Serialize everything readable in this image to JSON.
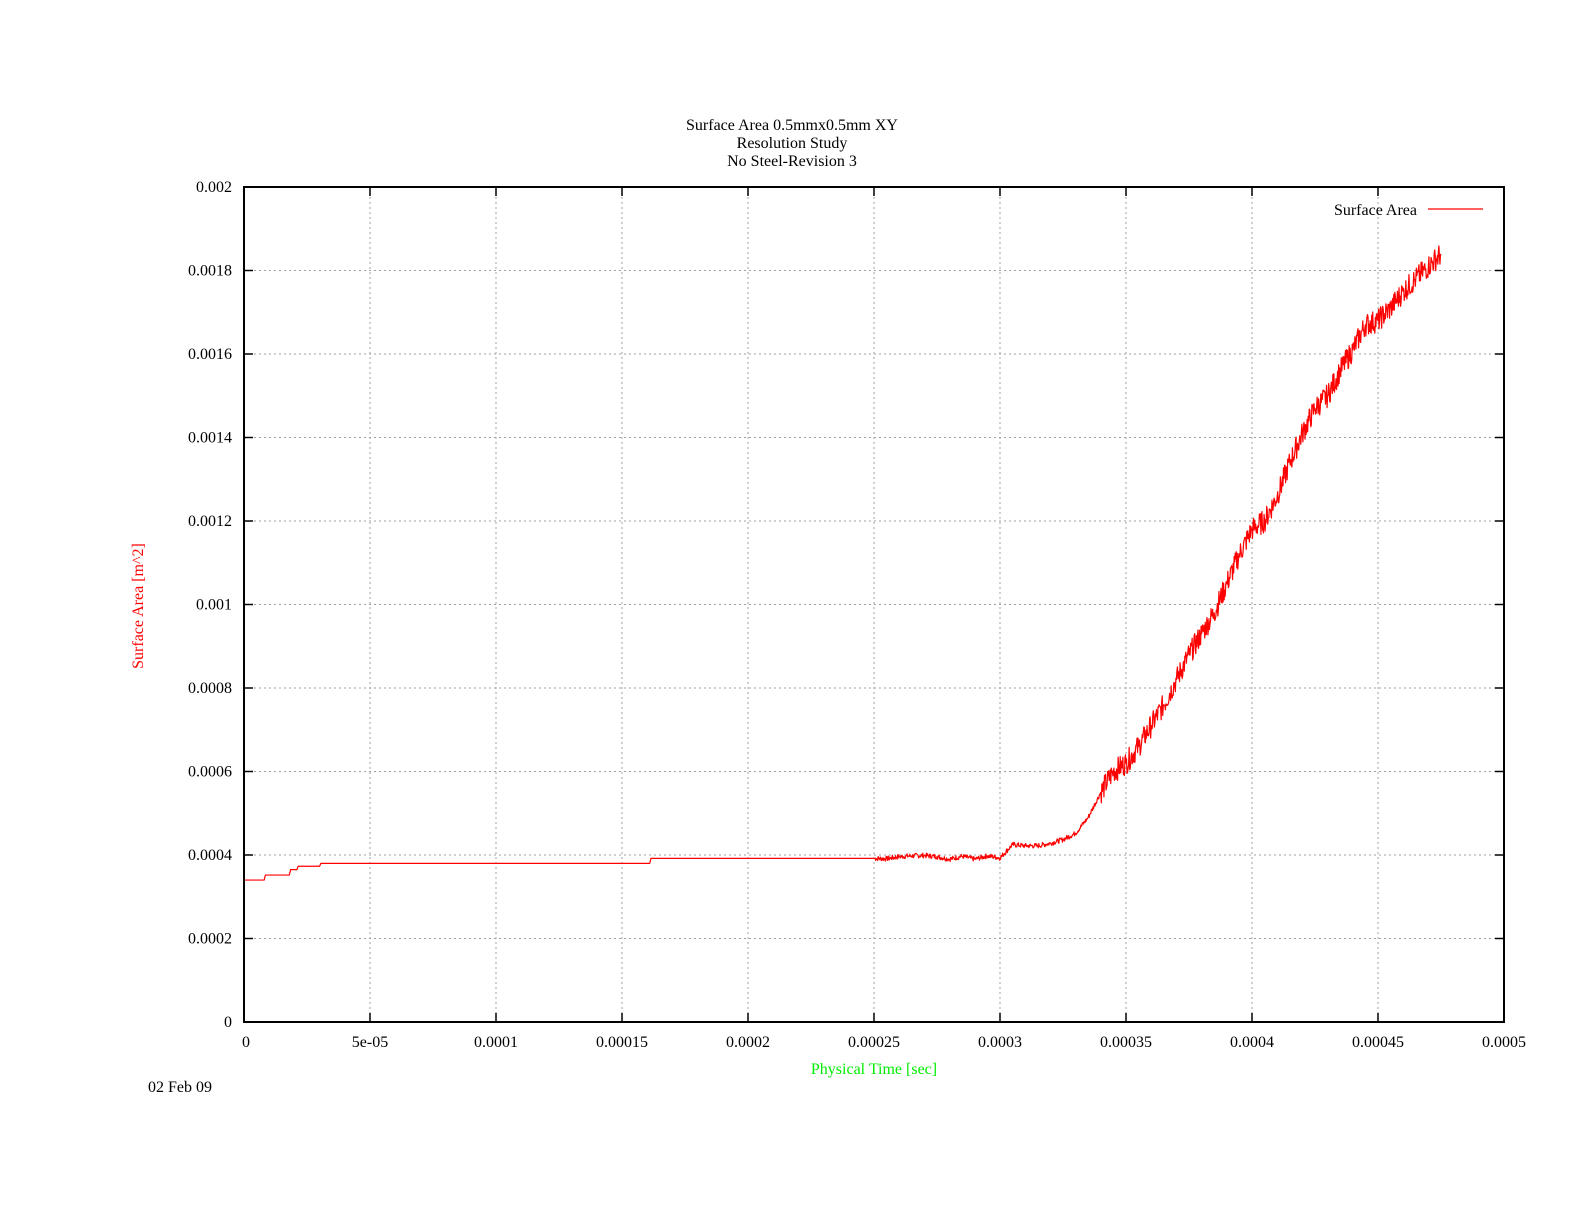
{
  "chart_data": {
    "type": "line",
    "title": [
      "Surface Area 0.5mmx0.5mm XY",
      "Resolution Study",
      "No Steel-Revision 3"
    ],
    "xlabel": "Physical Time [sec]",
    "ylabel": "Surface Area [m^2]",
    "xlim": [
      0,
      0.0005
    ],
    "ylim": [
      0,
      0.002
    ],
    "xticks": [
      0,
      5e-05,
      0.0001,
      0.00015,
      0.0002,
      0.00025,
      0.0003,
      0.00035,
      0.0004,
      0.00045,
      0.0005
    ],
    "xtick_labels": [
      "0",
      "5e-05",
      "0.0001",
      "0.00015",
      "0.0002",
      "0.00025",
      "0.0003",
      "0.00035",
      "0.0004",
      "0.00045",
      "0.0005"
    ],
    "yticks": [
      0,
      0.0002,
      0.0004,
      0.0006,
      0.0008,
      0.001,
      0.0012,
      0.0014,
      0.0016,
      0.0018,
      0.002
    ],
    "ytick_labels": [
      "0",
      "0.0002",
      "0.0004",
      "0.0006",
      "0.0008",
      "0.001",
      "0.0012",
      "0.0014",
      "0.0016",
      "0.0018",
      "0.002"
    ],
    "grid": true,
    "legend": "top-right",
    "xlabel_color": "#00ee00",
    "ylabel_color": "#ff0000",
    "series": [
      {
        "name": "Surface Area",
        "color": "#ff0000",
        "x": [
          0,
          8e-06,
          8.5e-06,
          1.8e-05,
          1.85e-05,
          2.1e-05,
          2.15e-05,
          3e-05,
          3.05e-05,
          0.000161,
          0.0001615,
          0.00025,
          0.000255,
          0.00026,
          0.000265,
          0.00027,
          0.000275,
          0.00028,
          0.000285,
          0.00029,
          0.000295,
          0.0003,
          0.000305,
          0.00031,
          0.000315,
          0.00032,
          0.000325,
          0.00033,
          0.000335,
          0.00034,
          0.000345,
          0.00035,
          0.000355,
          0.00036,
          0.000365,
          0.00037,
          0.000375,
          0.00038,
          0.000385,
          0.00039,
          0.000395,
          0.0004,
          0.000405,
          0.00041,
          0.000415,
          0.00042,
          0.000425,
          0.00043,
          0.000435,
          0.00044,
          0.000445,
          0.00045,
          0.000455,
          0.00046,
          0.000465,
          0.00047,
          0.000475
        ],
        "y": [
          0.00034,
          0.00034,
          0.000352,
          0.000352,
          0.000365,
          0.000365,
          0.000373,
          0.000373,
          0.00038,
          0.00038,
          0.000392,
          0.000392,
          0.000391,
          0.000396,
          0.000398,
          0.000399,
          0.000396,
          0.00039,
          0.000397,
          0.00039,
          0.000398,
          0.000393,
          0.000425,
          0.000422,
          0.000422,
          0.000428,
          0.000437,
          0.000452,
          0.00049,
          0.00055,
          0.0006,
          0.00062,
          0.00066,
          0.00071,
          0.00076,
          0.00082,
          0.00088,
          0.00093,
          0.00098,
          0.00105,
          0.00112,
          0.00118,
          0.0012,
          0.00126,
          0.00134,
          0.00141,
          0.00147,
          0.0015,
          0.00156,
          0.00161,
          0.00167,
          0.00168,
          0.00171,
          0.00175,
          0.00178,
          0.00181,
          0.00184
        ]
      }
    ]
  },
  "date_stamp": "02 Feb 09"
}
